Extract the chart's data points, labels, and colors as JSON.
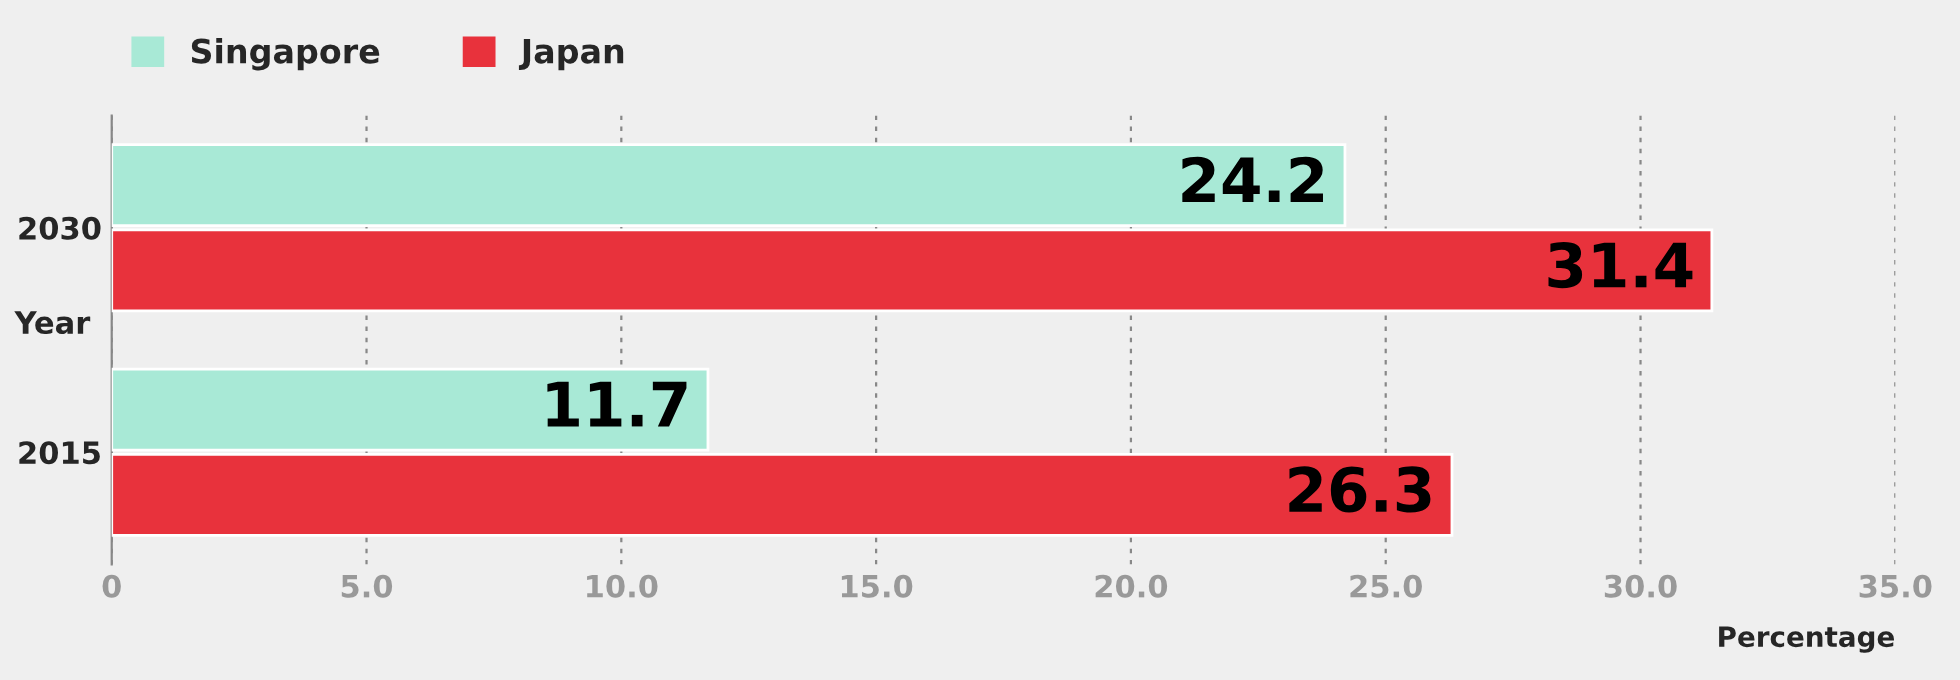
{
  "chart_data": {
    "type": "bar",
    "orientation": "horizontal",
    "categories": [
      "2030",
      "2015"
    ],
    "ylabel": "Year",
    "xlabel": "Percentage",
    "series": [
      {
        "name": "Singapore",
        "color": "#a8e9d6",
        "values": [
          24.2,
          11.7
        ]
      },
      {
        "name": "Japan",
        "color": "#e8323c",
        "values": [
          31.4,
          26.3
        ]
      }
    ],
    "xlim": [
      0,
      35
    ],
    "xticks": [
      0,
      {
        "value": 5,
        "label": "5.0"
      },
      {
        "value": 10,
        "label": "10.0"
      },
      {
        "value": 15,
        "label": "15.0"
      },
      {
        "value": 20,
        "label": "20.0"
      },
      {
        "value": 25,
        "label": "25.0"
      },
      {
        "value": 30,
        "label": "30.0"
      },
      {
        "value": 35,
        "label": "35.0"
      }
    ],
    "grid": "x",
    "legend": "top left",
    "data_labels": true
  }
}
